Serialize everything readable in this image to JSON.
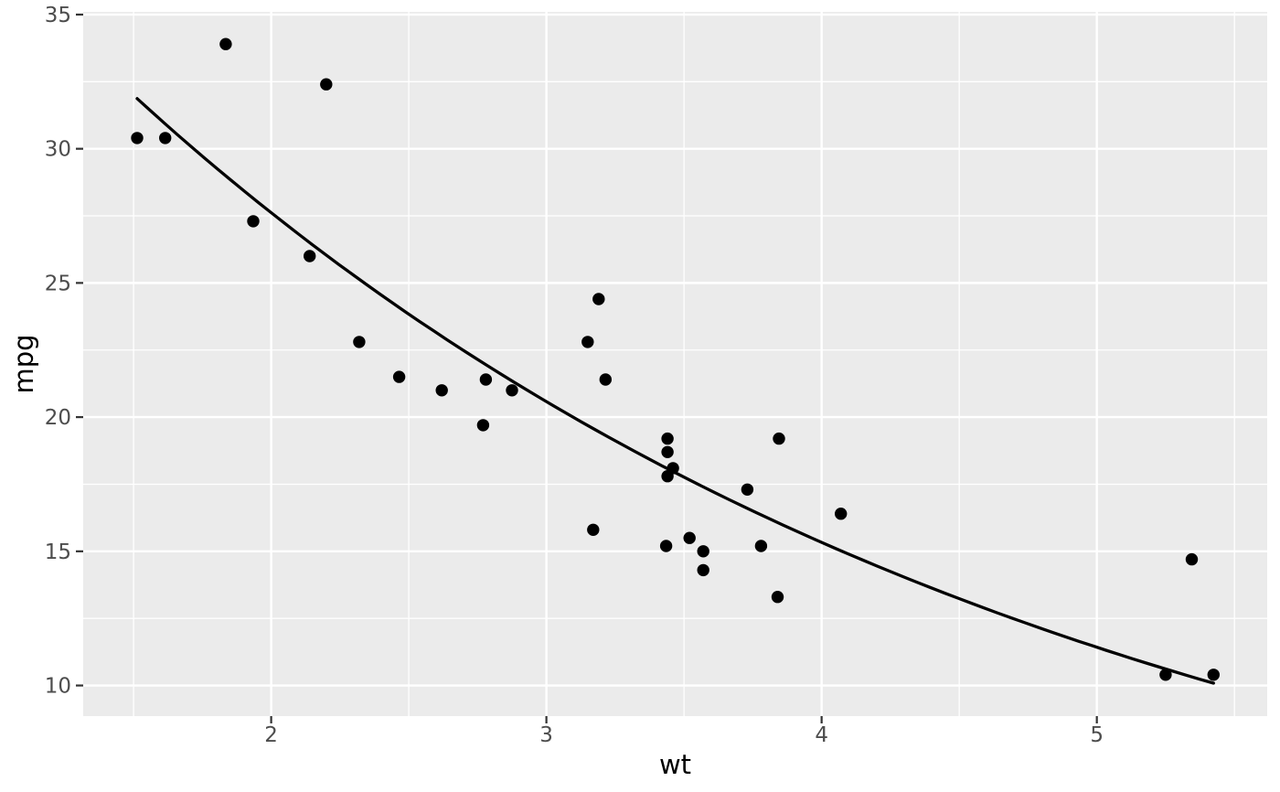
{
  "chart_data": {
    "type": "scatter",
    "title": "",
    "xlabel": "wt",
    "ylabel": "mpg",
    "x_ticks": [
      2,
      3,
      4,
      5
    ],
    "y_ticks": [
      10,
      15,
      20,
      25,
      30,
      35
    ],
    "x_minor_gridlines": [
      1.5,
      2.5,
      3.5,
      4.5,
      5.5
    ],
    "y_minor_gridlines": [
      12.5,
      17.5,
      22.5,
      27.5,
      32.5
    ],
    "xlim": [
      1.317,
      5.619
    ],
    "ylim": [
      8.86,
      35.1
    ],
    "grid": "major+minor",
    "legend": "none",
    "points": [
      [
        2.62,
        21.0
      ],
      [
        2.875,
        21.0
      ],
      [
        2.32,
        22.8
      ],
      [
        3.215,
        21.4
      ],
      [
        3.44,
        18.7
      ],
      [
        3.46,
        18.1
      ],
      [
        3.57,
        14.3
      ],
      [
        3.19,
        24.4
      ],
      [
        3.15,
        22.8
      ],
      [
        3.44,
        19.2
      ],
      [
        3.44,
        17.8
      ],
      [
        4.07,
        16.4
      ],
      [
        3.73,
        17.3
      ],
      [
        3.78,
        15.2
      ],
      [
        5.25,
        10.4
      ],
      [
        5.424,
        10.4
      ],
      [
        5.345,
        14.7
      ],
      [
        2.2,
        32.4
      ],
      [
        1.615,
        30.4
      ],
      [
        1.835,
        33.9
      ],
      [
        2.465,
        21.5
      ],
      [
        3.52,
        15.5
      ],
      [
        3.435,
        15.2
      ],
      [
        3.84,
        13.3
      ],
      [
        3.845,
        19.2
      ],
      [
        1.935,
        27.3
      ],
      [
        2.14,
        26.0
      ],
      [
        1.513,
        30.4
      ],
      [
        3.17,
        15.8
      ],
      [
        2.77,
        19.7
      ],
      [
        3.57,
        15.0
      ],
      [
        2.78,
        21.4
      ]
    ],
    "smooth": {
      "shape": "exponential_decay",
      "formula": "mpg = a * exp(-b * wt)",
      "a": 49.74,
      "b": 0.2942,
      "wt_start": 1.513,
      "wt_end": 5.424
    },
    "colors": {
      "figure_bg": "#FFFFFF",
      "panel_bg": "#EBEBEB",
      "gridline": "#FFFFFF",
      "point": "#000000",
      "smooth_line": "#000000",
      "tick_label": "#4D4D4D",
      "tick_mark": "#333333",
      "axis_title": "#000000"
    }
  }
}
